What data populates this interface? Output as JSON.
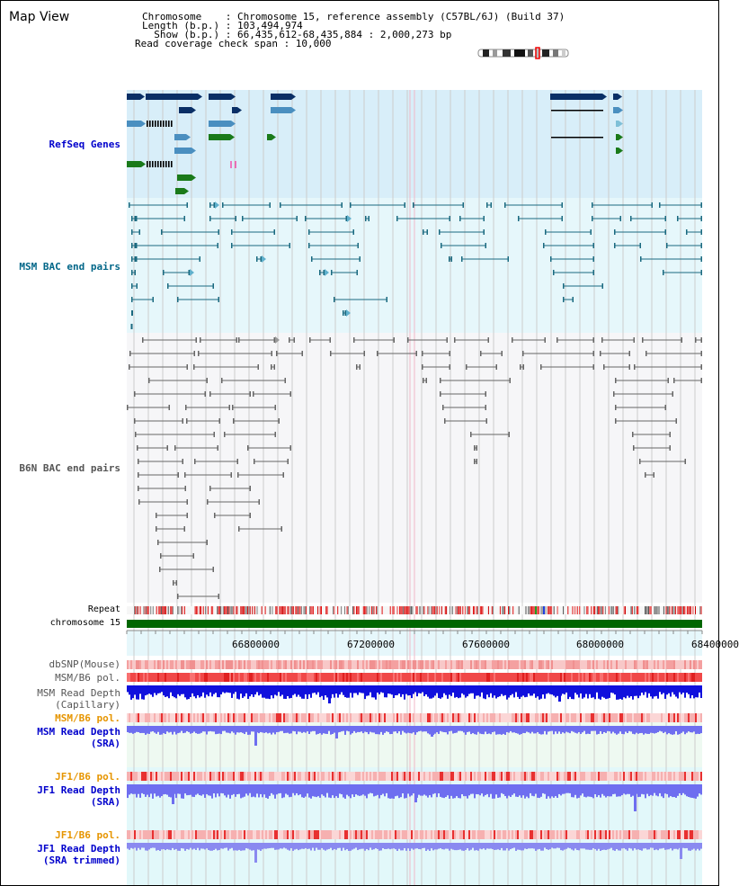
{
  "title": "Map View",
  "info": {
    "line1": "Chromosome    : Chromosome 15, reference assembly (C57BL/6J) (Build 37)",
    "line2": "Length (b.p.) : 103,494,974",
    "line3": "  Show (b.p.) : 66,435,612-68,435,884 : 2,000,273 bp",
    "line4": "Read coverage check span : 10,000"
  },
  "tracks": {
    "refseq": "RefSeq Genes",
    "msm_bac": "MSM BAC end pairs",
    "b6n_bac": "B6N BAC end pairs",
    "repeat": "Repeat",
    "chromosome": "chromosome 15",
    "dbsnp": "dbSNP(Mouse)",
    "msm_pol1": "MSM/B6 pol.",
    "msm_depth_cap": "MSM Read Depth\n(Capillary)",
    "msm_pol2": "MSM/B6 pol.",
    "msm_depth_sra": "MSM Read Depth\n(SRA)",
    "jf1_pol1": "JF1/B6 pol.",
    "jf1_depth_sra": "JF1 Read Depth\n(SRA)",
    "jf1_pol2": "JF1/B6 pol.",
    "jf1_depth_trim": "JF1 Read Depth\n(SRA trimmed)"
  },
  "axis_ticks": [
    "66800000",
    "67200000",
    "67600000",
    "68000000",
    "68400000"
  ],
  "colors": {
    "refseq_bg": "#d8eef9",
    "msm_bac_bg": "#e6f7fb",
    "refseq_label": "#0000cc",
    "msm_label": "#006688",
    "b6n_label": "#555555",
    "pol_orange": "#e69500",
    "depth_blue": "#0000cc",
    "chromosome_bar": "#006600"
  }
}
